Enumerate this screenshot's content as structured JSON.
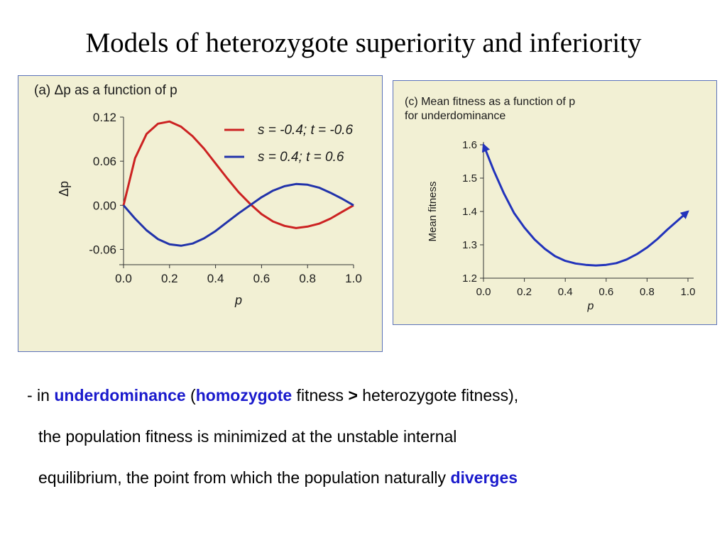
{
  "slide": {
    "title": "Models of heterozygote superiority and inferiority"
  },
  "caption": {
    "bullet": "- in ",
    "kw1": "underdominance",
    "t1": " (",
    "kw2": "homozygote",
    "t2": " fitness ",
    "gt": ">",
    "t3": " heterozygote fitness),",
    "line2": "the population fitness is minimized at the unstable internal",
    "line3": "equilibrium, the point from which the population naturally ",
    "kw3": "diverges",
    "keyword_color": "#1a1acc"
  },
  "chart_data": [
    {
      "type": "line",
      "panel_label": "(a) Δp as a function of p",
      "xlabel": "p",
      "ylabel": "Δp",
      "xlim": [
        0.0,
        1.0
      ],
      "ylim": [
        -0.075,
        0.12
      ],
      "x_ticks": [
        "0.0",
        "0.2",
        "0.4",
        "0.6",
        "0.8",
        "1.0"
      ],
      "y_ticks": [
        "0.12",
        "0.06",
        "0.00",
        "-0.06"
      ],
      "legend_position": "top-right",
      "background": "#f2f0d4",
      "series": [
        {
          "name": "s = -0.4; t = -0.6",
          "color": "#cc2222",
          "x": [
            0.0,
            0.05,
            0.1,
            0.15,
            0.2,
            0.25,
            0.3,
            0.35,
            0.4,
            0.45,
            0.5,
            0.55,
            0.6,
            0.65,
            0.7,
            0.75,
            0.8,
            0.85,
            0.9,
            0.95,
            1.0
          ],
          "y": [
            0.0,
            0.064,
            0.097,
            0.111,
            0.114,
            0.107,
            0.094,
            0.077,
            0.057,
            0.037,
            0.018,
            0.002,
            -0.012,
            -0.022,
            -0.028,
            -0.031,
            -0.029,
            -0.025,
            -0.018,
            -0.009,
            0.0
          ]
        },
        {
          "name": "s = 0.4; t = 0.6",
          "color": "#2233aa",
          "x": [
            0.0,
            0.05,
            0.1,
            0.15,
            0.2,
            0.25,
            0.3,
            0.35,
            0.4,
            0.45,
            0.5,
            0.55,
            0.6,
            0.65,
            0.7,
            0.75,
            0.8,
            0.85,
            0.9,
            0.95,
            1.0
          ],
          "y": [
            0.0,
            -0.018,
            -0.034,
            -0.046,
            -0.053,
            -0.055,
            -0.052,
            -0.045,
            -0.035,
            -0.023,
            -0.011,
            0.0,
            0.011,
            0.02,
            0.026,
            0.029,
            0.028,
            0.024,
            0.017,
            0.009,
            0.0
          ]
        }
      ]
    },
    {
      "type": "line",
      "panel_label": "(c) Mean fitness as a function of p for underdominance",
      "panel_label_lines": [
        "(c) Mean fitness as a function of p",
        "for underdominance"
      ],
      "xlabel": "p",
      "ylabel": "Mean fitness",
      "xlim": [
        0.0,
        1.0
      ],
      "ylim": [
        1.2,
        1.6
      ],
      "x_ticks": [
        "0.0",
        "0.2",
        "0.4",
        "0.6",
        "0.8",
        "1.0"
      ],
      "y_ticks": [
        "1.6",
        "1.5",
        "1.4",
        "1.3",
        "1.2"
      ],
      "background": "#f2f0d4",
      "series": [
        {
          "color": "#2233bb",
          "x": [
            0.0,
            0.05,
            0.1,
            0.15,
            0.2,
            0.25,
            0.3,
            0.35,
            0.4,
            0.45,
            0.5,
            0.55,
            0.6,
            0.65,
            0.7,
            0.75,
            0.8,
            0.85,
            0.9,
            0.95,
            1.0
          ],
          "y": [
            1.6,
            1.523,
            1.454,
            1.395,
            1.352,
            1.316,
            1.288,
            1.266,
            1.252,
            1.244,
            1.24,
            1.238,
            1.24,
            1.245,
            1.256,
            1.272,
            1.292,
            1.317,
            1.346,
            1.373,
            1.4
          ]
        }
      ]
    }
  ]
}
